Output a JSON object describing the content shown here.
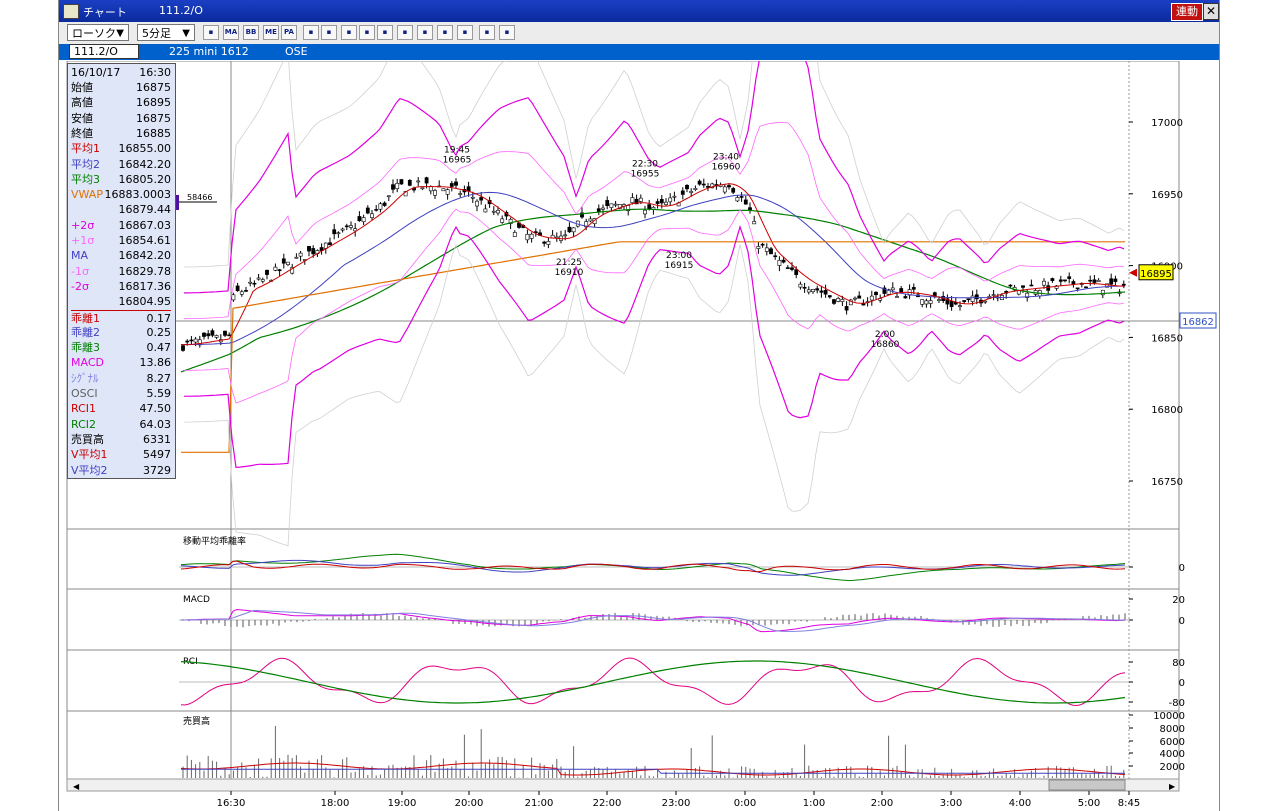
{
  "window": {
    "title": "チャート",
    "code": "111.2/O",
    "link_label": "連動",
    "close_label": "✕"
  },
  "toolbar": {
    "chart_type": "ローソク",
    "interval": "5分足",
    "buttons": [
      "grid-icon",
      "MA",
      "BB",
      "ME",
      "PA",
      "line-icon",
      "trend-icon",
      "fib-icon",
      "zoom-icon",
      "print-icon",
      "layout-icon",
      "pencil-icon",
      "cursor-icon",
      "eraser-icon",
      "settings-icon",
      "text-icon"
    ]
  },
  "infobar": {
    "code": "111.2/O",
    "instrument": "225 mini 1612",
    "exchange": "OSE"
  },
  "datapanel": {
    "date": "16/10/17",
    "time": "16:30",
    "rows": [
      {
        "k": "始値",
        "v": "16875",
        "c": "#000000"
      },
      {
        "k": "高値",
        "v": "16895",
        "c": "#000000"
      },
      {
        "k": "安値",
        "v": "16875",
        "c": "#000000"
      },
      {
        "k": "終値",
        "v": "16885",
        "c": "#000000"
      },
      {
        "k": "平均1",
        "v": "16855.00",
        "c": "#cc0000"
      },
      {
        "k": "平均2",
        "v": "16842.20",
        "c": "#4040c0"
      },
      {
        "k": "平均3",
        "v": "16805.20",
        "c": "#008000"
      },
      {
        "k": "VWAP",
        "v": "16883.0003",
        "c": "#e07000"
      },
      {
        "k": "",
        "v": "16879.44",
        "c": "#000000"
      },
      {
        "k": "+2σ",
        "v": "16867.03",
        "c": "#e000e0"
      },
      {
        "k": "+1σ",
        "v": "16854.61",
        "c": "#ff66ff"
      },
      {
        "k": "MA",
        "v": "16842.20",
        "c": "#4040c0"
      },
      {
        "k": "-1σ",
        "v": "16829.78",
        "c": "#ff66ff"
      },
      {
        "k": "-2σ",
        "v": "16817.36",
        "c": "#e000e0"
      },
      {
        "k": "",
        "v": "16804.95",
        "c": "#000000"
      },
      {
        "k": "乖離1",
        "v": "0.17",
        "c": "#cc0000"
      },
      {
        "k": "乖離2",
        "v": "0.25",
        "c": "#4040c0"
      },
      {
        "k": "乖離3",
        "v": "0.47",
        "c": "#008000"
      },
      {
        "k": "MACD",
        "v": "13.86",
        "c": "#e000e0"
      },
      {
        "k": "ｼｸﾞﾅﾙ",
        "v": "8.27",
        "c": "#8080e0"
      },
      {
        "k": "OSCI",
        "v": "5.59",
        "c": "#606060"
      },
      {
        "k": "RCI1",
        "v": "47.50",
        "c": "#cc0000"
      },
      {
        "k": "RCI2",
        "v": "64.03",
        "c": "#008000"
      },
      {
        "k": "売買高",
        "v": "6331",
        "c": "#000000"
      },
      {
        "k": "V平均1",
        "v": "5497",
        "c": "#cc0000"
      },
      {
        "k": "V平均2",
        "v": "3729",
        "c": "#4040c0"
      }
    ]
  },
  "main_chart": {
    "price_ticks": [
      "17000",
      "16950",
      "16900",
      "16850",
      "16800",
      "16750"
    ],
    "current_price": "16895",
    "crosshair_price": "16862",
    "volume_marker": "58466",
    "annotations": [
      {
        "time": "19:45",
        "price": "16965",
        "pos": "top"
      },
      {
        "time": "22:30",
        "price": "16955",
        "pos": "top"
      },
      {
        "time": "23:40",
        "price": "16960",
        "pos": "top"
      },
      {
        "time": "21:25",
        "price": "16910",
        "pos": "bottom"
      },
      {
        "time": "23:00",
        "price": "16915",
        "pos": "bottom"
      },
      {
        "time": "2:00",
        "price": "16860",
        "pos": "bottom"
      }
    ],
    "time_ticks": [
      "16:30",
      "18:00",
      "19:00",
      "20:00",
      "21:00",
      "22:00",
      "23:00",
      "0:00",
      "1:00",
      "2:00",
      "3:00",
      "4:00",
      "5:00",
      "8:45"
    ]
  },
  "subpanels": {
    "deviation": {
      "title": "移動平均乖離率",
      "ticks": [
        "0"
      ]
    },
    "macd": {
      "title": "MACD",
      "ticks": [
        "20",
        "0"
      ]
    },
    "rci": {
      "title": "RCI",
      "ticks": [
        "80",
        "0",
        "-80"
      ]
    },
    "volume": {
      "title": "売買高",
      "ticks": [
        "10000",
        "8000",
        "6000",
        "4000",
        "2000"
      ]
    }
  },
  "colors": {
    "title_bar": "#0a2a9c",
    "info_bar": "#0060cc",
    "candle_up": "#ffffff",
    "candle_down": "#000000",
    "ma1": "#cc0000",
    "ma2": "#4040c0",
    "ma3": "#008000",
    "vwap": "#e07000",
    "band2": "#e000e0",
    "band1": "#ff66ff",
    "band3": "#d0d0d0"
  }
}
